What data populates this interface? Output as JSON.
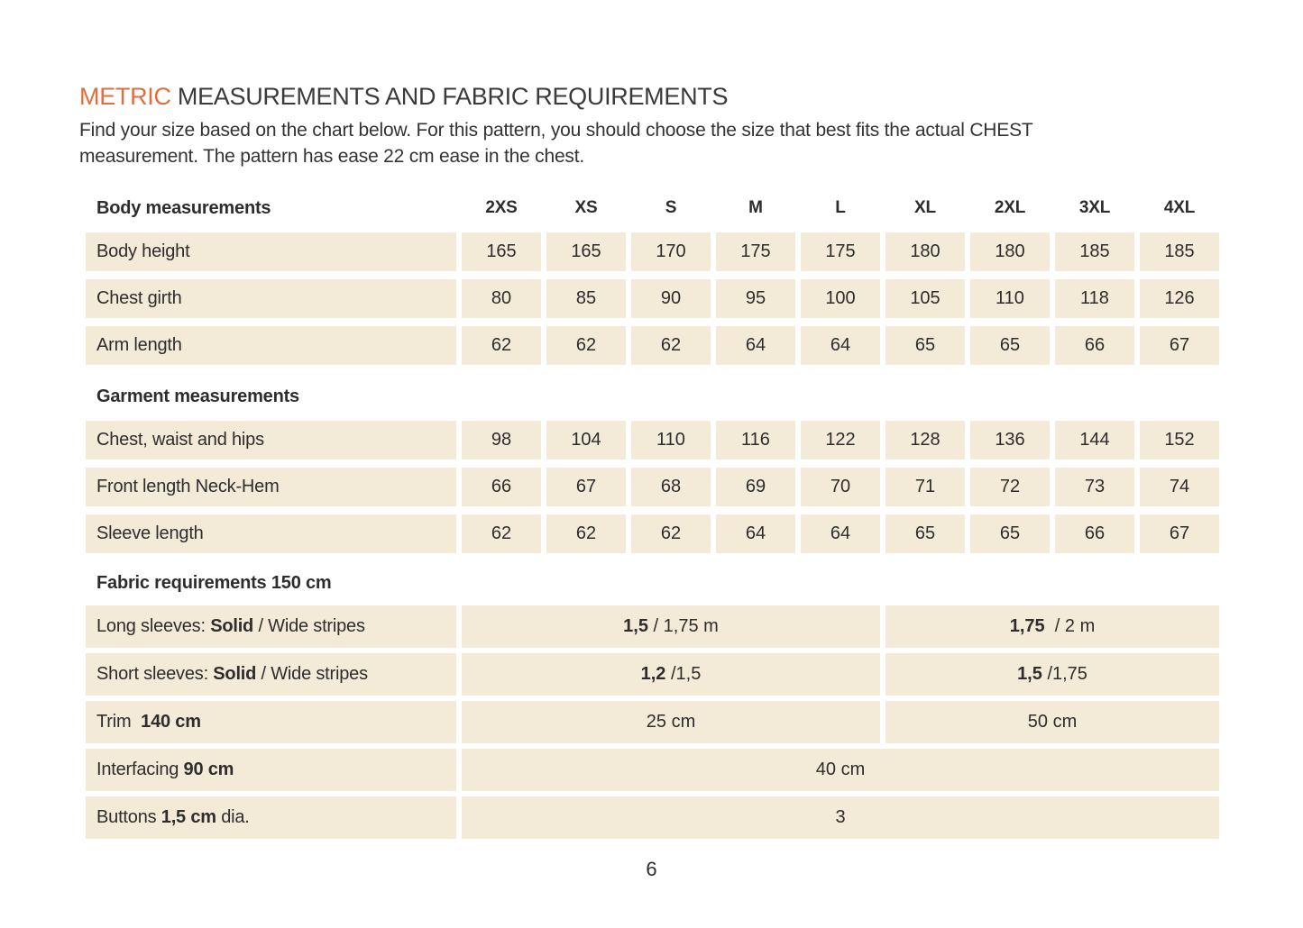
{
  "title": {
    "highlight": "METRIC",
    "rest": " MEASUREMENTS AND FABRIC REQUIREMENTS"
  },
  "intro": {
    "line1": "Find your size based on the chart below. For this pattern, you should choose the size that best fits the actual CHEST",
    "line2": "measurement. The pattern has ease 22 cm ease in the chest."
  },
  "colors": {
    "accent_orange": "#e06f3d",
    "cell_background": "#f3ead8",
    "text": "#2d2d2d"
  },
  "sizes": [
    "2XS",
    "XS",
    "S",
    "M",
    "L",
    "XL",
    "2XL",
    "3XL",
    "4XL"
  ],
  "sections": {
    "body": {
      "header": "Body measurements"
    },
    "garment": {
      "header": "Garment measurements"
    },
    "fabric": {
      "header": "Fabric requirements 150 cm"
    }
  },
  "body_rows": [
    {
      "label": "Body height",
      "values": [
        "165",
        "165",
        "170",
        "175",
        "175",
        "180",
        "180",
        "185",
        "185"
      ]
    },
    {
      "label": "Chest girth",
      "values": [
        "80",
        "85",
        "90",
        "95",
        "100",
        "105",
        "110",
        "118",
        "126"
      ]
    },
    {
      "label": "Arm length",
      "values": [
        "62",
        "62",
        "62",
        "64",
        "64",
        "65",
        "65",
        "66",
        "67"
      ]
    }
  ],
  "garment_rows": [
    {
      "label": "Chest, waist and hips",
      "values": [
        "98",
        "104",
        "110",
        "116",
        "122",
        "128",
        "136",
        "144",
        "152"
      ]
    },
    {
      "label": "Front length Neck-Hem",
      "values": [
        "66",
        "67",
        "68",
        "69",
        "70",
        "71",
        "72",
        "73",
        "74"
      ]
    },
    {
      "label": "Sleeve length",
      "values": [
        "62",
        "62",
        "62",
        "64",
        "64",
        "65",
        "65",
        "66",
        "67"
      ]
    }
  ],
  "fabric_split_rows": [
    {
      "label_pre": "Long sleeves: ",
      "label_bold": "Solid",
      "label_post": " / Wide stripes",
      "left_bold": "1,5",
      "left_rest": " / 1,75 m",
      "right_bold": "1,75",
      "right_rest": "  / 2 m"
    },
    {
      "label_pre": "Short sleeves: ",
      "label_bold": "Solid",
      "label_post": " / Wide stripes",
      "left_bold": "1,2",
      "left_rest": " /1,5",
      "right_bold": "1,5",
      "right_rest": " /1,75"
    },
    {
      "label_pre": "Trim  ",
      "label_bold": "140 cm",
      "label_post": "",
      "left_bold": "",
      "left_rest": "25 cm",
      "right_bold": "",
      "right_rest": "50 cm"
    }
  ],
  "fabric_full_rows": [
    {
      "label_pre": "Interfacing ",
      "label_bold": "90 cm",
      "label_post": "",
      "value": "40 cm"
    },
    {
      "label_pre": "Buttons ",
      "label_bold": "1,5 cm",
      "label_post": " dia.",
      "value": "3"
    }
  ],
  "page_number": "6"
}
